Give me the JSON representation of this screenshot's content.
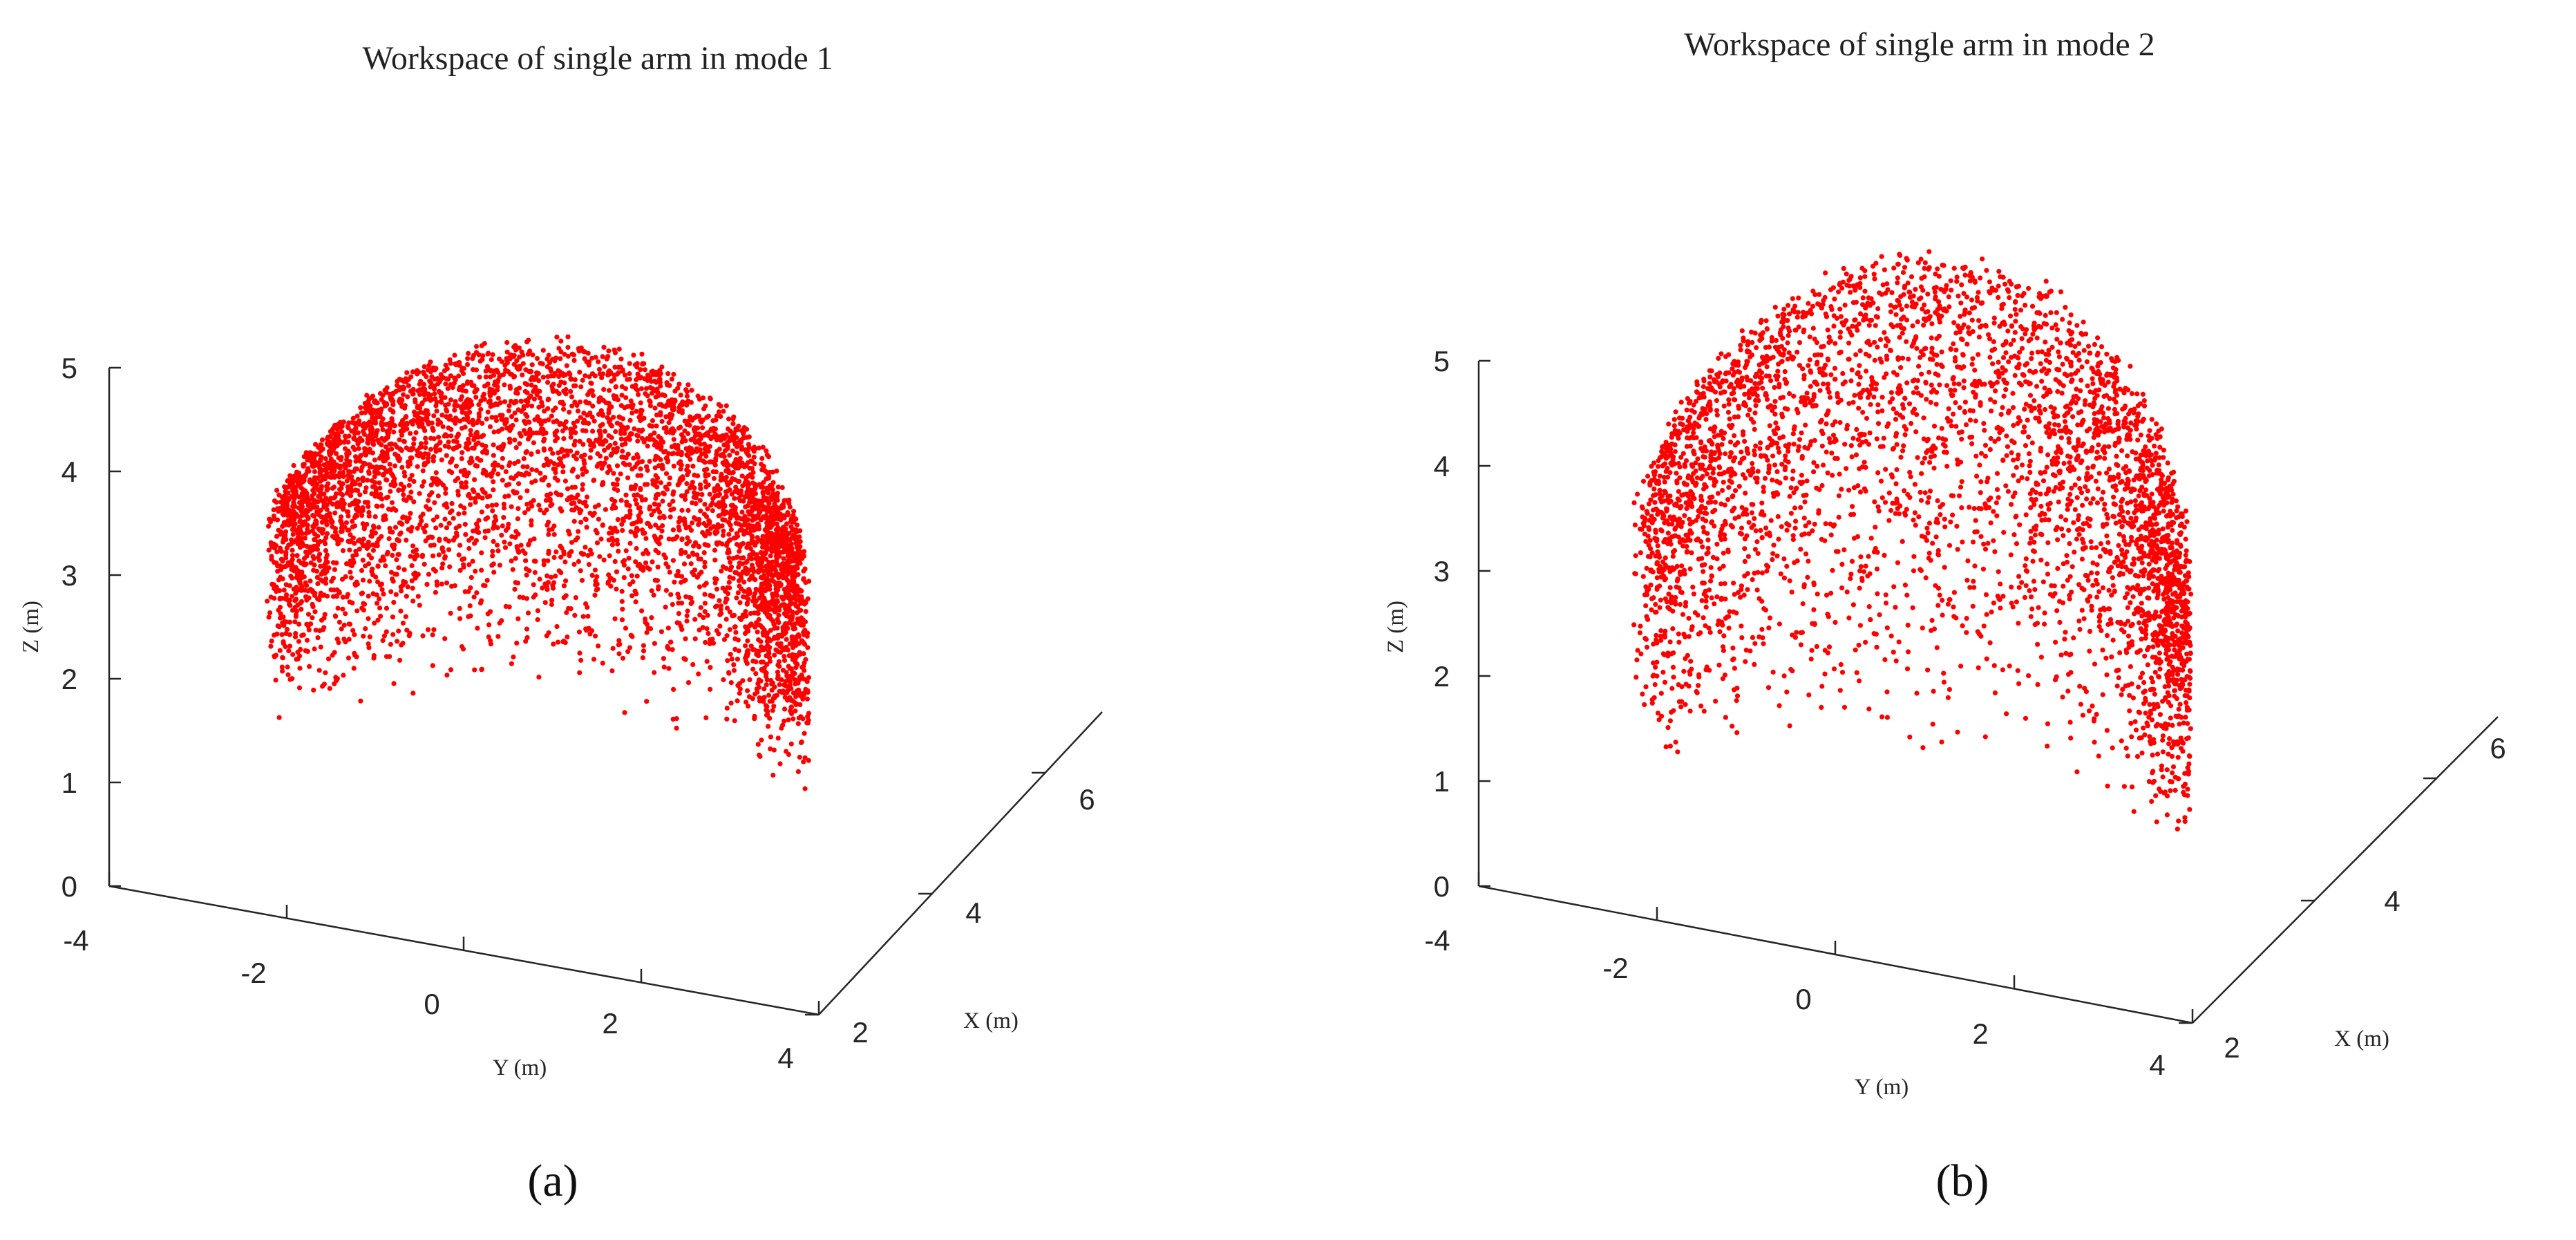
{
  "chart_data": [
    {
      "type": "scatter",
      "title": "Workspace of single arm in mode 1",
      "xlabel": "X (m)",
      "ylabel": "Y (m)",
      "zlabel": "Z (m)",
      "xlim": [
        2,
        7
      ],
      "ylim": [
        -4,
        4
      ],
      "zlim": [
        0,
        5
      ],
      "x_ticks": [
        "2",
        "4",
        "6"
      ],
      "y_ticks": [
        "-4",
        "-2",
        "0",
        "2",
        "4"
      ],
      "z_ticks": [
        "0",
        "1",
        "2",
        "3",
        "4",
        "5"
      ],
      "marker_color": "#ff0000",
      "grid": false,
      "description_of_points": "point cloud, ~5000 points",
      "point_count": 5000,
      "z_top": 4.5,
      "z_bottom": 1.0,
      "panel_label": "(a)"
    },
    {
      "type": "scatter",
      "title": "Workspace of single arm in mode 2",
      "xlabel": "X (m)",
      "ylabel": "Y (m)",
      "zlabel": "Z (m)",
      "xlim": [
        2,
        7
      ],
      "ylim": [
        -4,
        4
      ],
      "zlim": [
        0,
        5
      ],
      "x_ticks": [
        "2",
        "4",
        "6"
      ],
      "y_ticks": [
        "-4",
        "-2",
        "0",
        "2",
        "4"
      ],
      "z_ticks": [
        "0",
        "1",
        "2",
        "3",
        "4",
        "5"
      ],
      "marker_color": "#ff0000",
      "grid": false,
      "point_count": 4000,
      "z_top": 5.3,
      "z_bottom": 0.5,
      "panel_label": "(b)"
    }
  ]
}
